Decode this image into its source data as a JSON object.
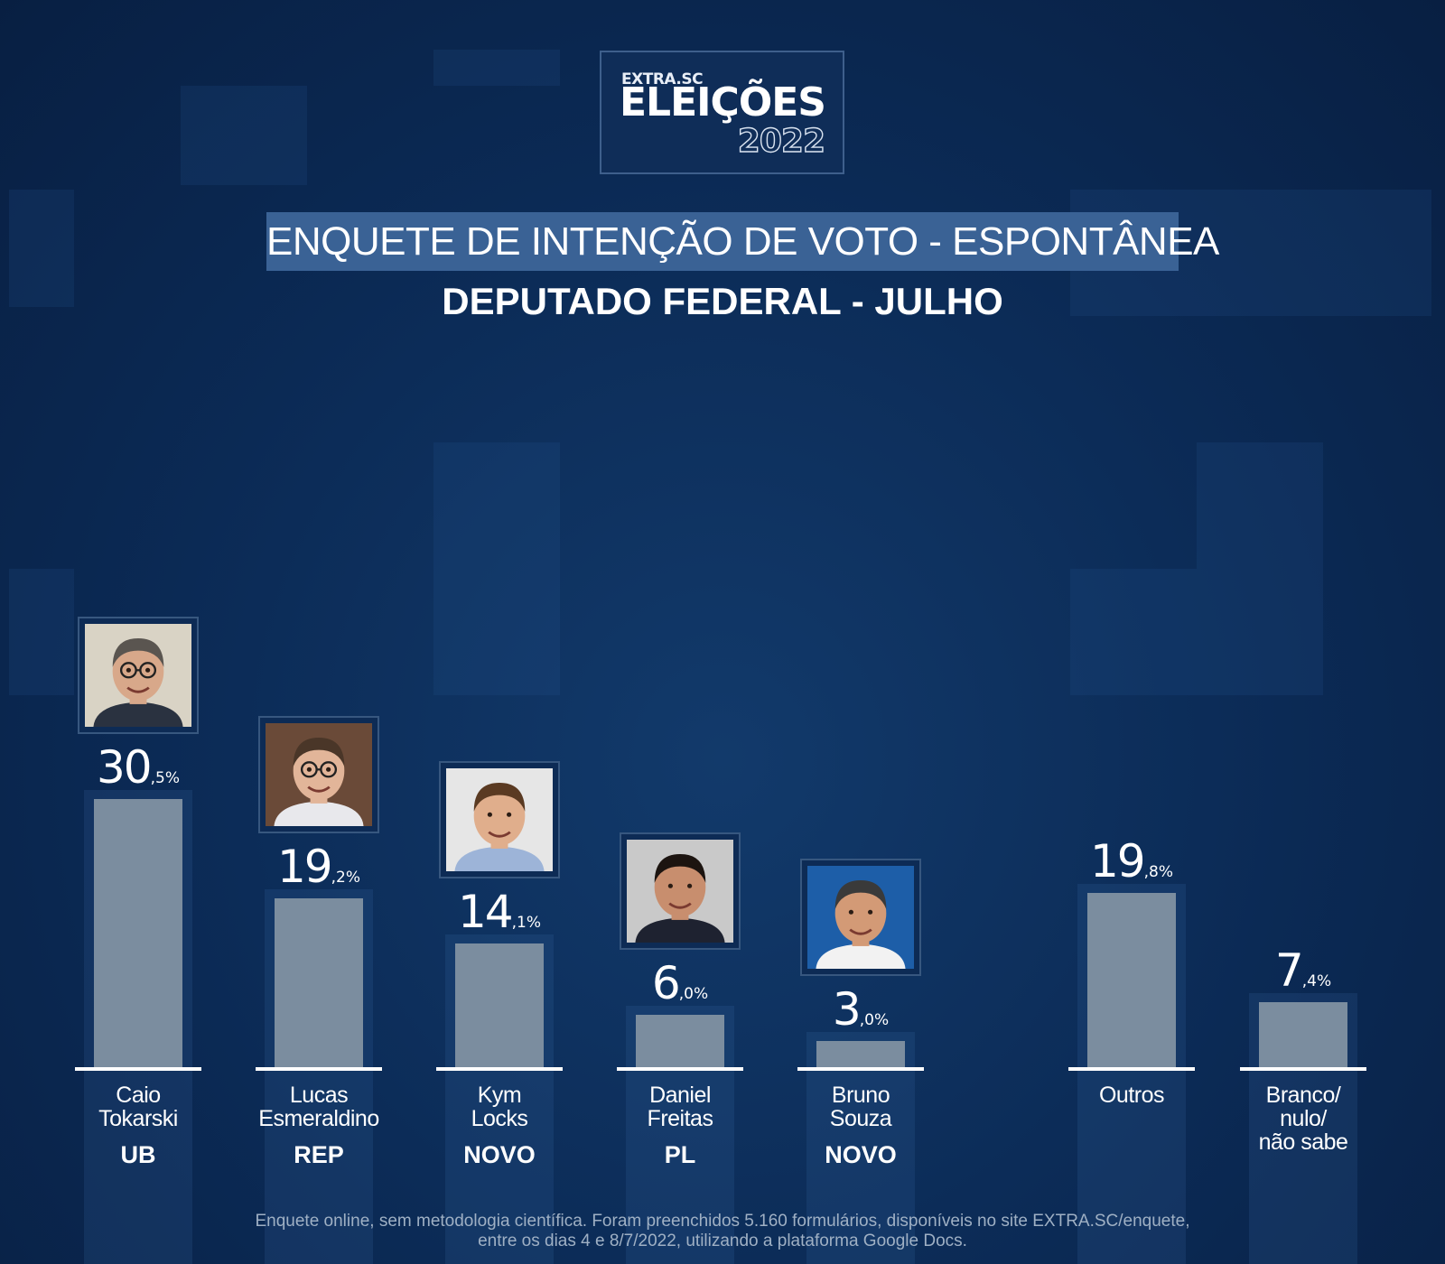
{
  "logo": {
    "brand": "EXTRA.SC",
    "title": "ELEIÇÕES",
    "year": "2022"
  },
  "header": {
    "title": "ENQUETE DE INTENÇÃO DE VOTO - ESPONTÂNEA",
    "subtitle": "DEPUTADO FEDERAL - JULHO"
  },
  "chart_data": {
    "type": "bar",
    "title": "ENQUETE DE INTENÇÃO DE VOTO - ESPONTÂNEA",
    "subtitle": "DEPUTADO FEDERAL - JULHO",
    "unit": "%",
    "ylim": [
      0,
      31
    ],
    "grid": false,
    "legend": "none",
    "bar_color": "#7b8d9f",
    "categories": [
      "Caio Tokarski",
      "Lucas Esmeraldino",
      "Kym Locks",
      "Daniel Freitas",
      "Bruno Souza",
      "Outros",
      "Branco/ nulo/ não sabe"
    ],
    "values": [
      30.5,
      19.2,
      14.1,
      6.0,
      3.0,
      19.8,
      7.4
    ],
    "bars": [
      {
        "name_lines": [
          "Caio",
          "Tokarski"
        ],
        "party": "UB",
        "value": 30.5,
        "int": "30",
        "dec": ",5%",
        "photo": true,
        "photo_bg": "#d9d3c5",
        "skin": "#d8a88a",
        "hair": "#5a5550",
        "shirt": "#2a3240",
        "glasses": true
      },
      {
        "name_lines": [
          "Lucas",
          "Esmeraldino"
        ],
        "party": "REP",
        "value": 19.2,
        "int": "19",
        "dec": ",2%",
        "photo": true,
        "photo_bg": "#6a4a38",
        "skin": "#e2b599",
        "hair": "#4a3628",
        "shirt": "#e8e8ec",
        "glasses": true
      },
      {
        "name_lines": [
          "Kym",
          "Locks"
        ],
        "party": "NOVO",
        "value": 14.1,
        "int": "14",
        "dec": ",1%",
        "photo": true,
        "photo_bg": "#e6e6e6",
        "skin": "#e0ae8c",
        "hair": "#5a3a22",
        "shirt": "#9db4d8",
        "glasses": false
      },
      {
        "name_lines": [
          "Daniel",
          "Freitas"
        ],
        "party": "PL",
        "value": 6.0,
        "int": "6",
        "dec": ",0%",
        "photo": true,
        "photo_bg": "#c9c9c9",
        "skin": "#c88e6e",
        "hair": "#1c1410",
        "shirt": "#1e2230",
        "glasses": false
      },
      {
        "name_lines": [
          "Bruno",
          "Souza"
        ],
        "party": "NOVO",
        "value": 3.0,
        "int": "3",
        "dec": ",0%",
        "photo": true,
        "photo_bg": "#1d5ea8",
        "skin": "#d39a76",
        "hair": "#3a3a3a",
        "shirt": "#f2f2f2",
        "glasses": false
      },
      {
        "name_lines": [
          "Outros"
        ],
        "party": "",
        "value": 19.8,
        "int": "19",
        "dec": ",8%",
        "photo": false
      },
      {
        "name_lines": [
          "Branco/",
          "nulo/",
          "não sabe"
        ],
        "party": "",
        "value": 7.4,
        "int": "7",
        "dec": ",4%",
        "photo": false
      }
    ]
  },
  "footnote": {
    "line1": "Enquete online, sem metodologia científica. Foram preenchidos 5.160 formulários, disponíveis no site EXTRA.SC/enquete,",
    "line2": "entre os dias 4 e 8/7/2022, utilizando a plataforma Google Docs."
  }
}
